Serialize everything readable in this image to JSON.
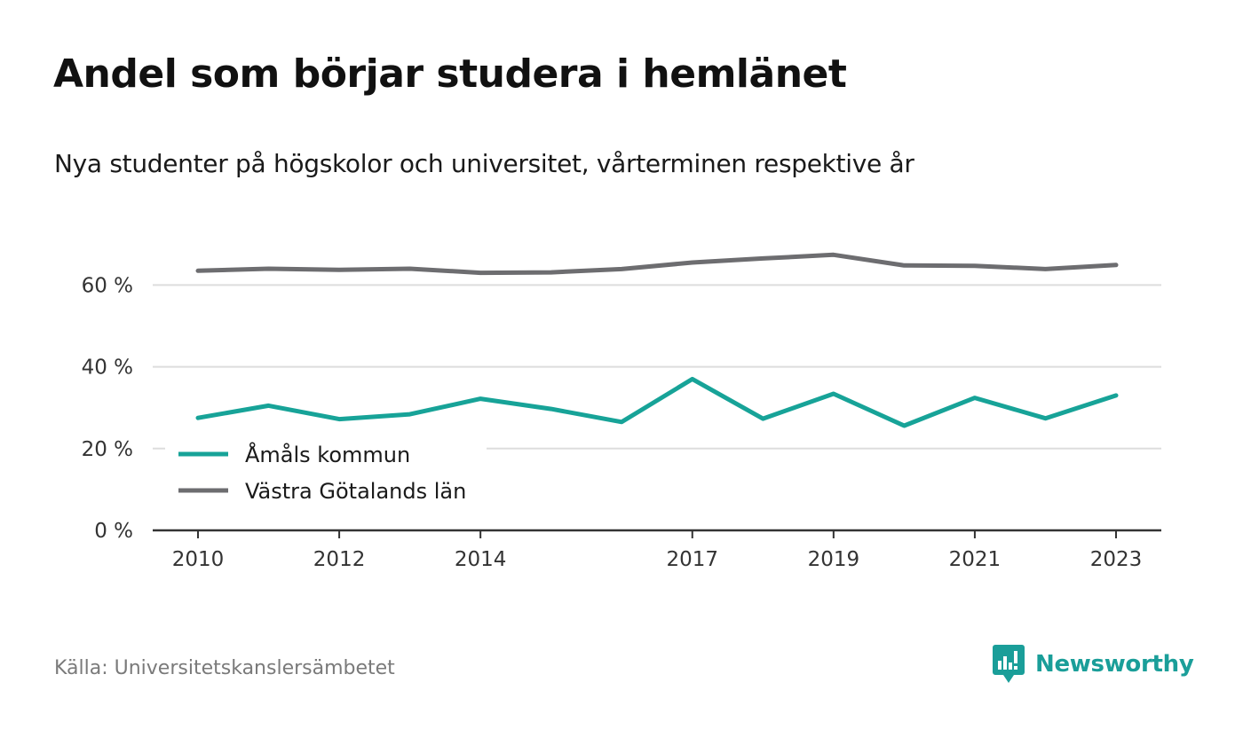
{
  "title": "Andel som börjar studera i hemlänet",
  "subtitle": "Nya studenter på högskolor och universitet, vårterminen respektive år",
  "source": "Källa: Universitetskanslersämbetet",
  "brand": {
    "name": "Newsworthy",
    "icon": "newsworthy-logo-icon",
    "color": "#1a9e99"
  },
  "chart_data": {
    "type": "line",
    "title": "Andel som börjar studera i hemlänet",
    "subtitle": "Nya studenter på högskolor och universitet, vårterminen respektive år",
    "x": [
      2010,
      2011,
      2012,
      2013,
      2014,
      2015,
      2016,
      2017,
      2018,
      2019,
      2020,
      2021,
      2022,
      2023
    ],
    "x_ticks": [
      2010,
      2012,
      2014,
      2017,
      2019,
      2021,
      2023
    ],
    "y_ticks": [
      0,
      20,
      40,
      60
    ],
    "y_tick_labels": [
      "0 %",
      "20 %",
      "40 %",
      "60 %"
    ],
    "ylim": [
      0,
      70
    ],
    "grid": true,
    "legend_position": "bottom-left",
    "series": [
      {
        "name": "Åmåls kommun",
        "color": "#17a398",
        "values": [
          27.5,
          30.5,
          27.2,
          28.4,
          32.2,
          29.7,
          26.5,
          37.0,
          27.3,
          33.4,
          25.6,
          32.4,
          27.4,
          33.0
        ]
      },
      {
        "name": "Västra Götalands län",
        "color": "#6d6d70",
        "values": [
          63.5,
          64.0,
          63.7,
          64.0,
          63.0,
          63.1,
          63.9,
          65.5,
          66.5,
          67.4,
          64.8,
          64.7,
          63.9,
          64.9
        ]
      }
    ]
  }
}
